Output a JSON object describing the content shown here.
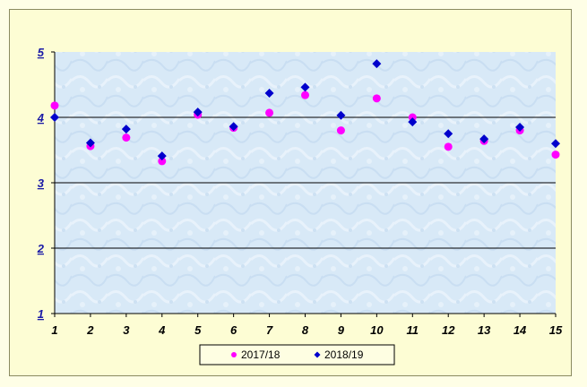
{
  "chart_data": {
    "type": "scatter",
    "title": "",
    "xlabel": "",
    "ylabel": "",
    "x": [
      1,
      2,
      3,
      4,
      5,
      6,
      7,
      8,
      9,
      10,
      11,
      12,
      13,
      14,
      15
    ],
    "xlim": [
      1,
      15
    ],
    "ylim": [
      1,
      5
    ],
    "x_ticks": [
      "1",
      "2",
      "3",
      "4",
      "5",
      "6",
      "7",
      "8",
      "9",
      "10",
      "11",
      "12",
      "13",
      "14",
      "15"
    ],
    "y_ticks": [
      "1",
      "2",
      "3",
      "4",
      "5"
    ],
    "grid": "horizontal",
    "legend_position": "bottom",
    "series": [
      {
        "name": "2017/18",
        "marker": "circle",
        "color": "#ff00ff",
        "values": [
          4.18,
          3.56,
          3.69,
          3.33,
          4.04,
          3.84,
          4.07,
          4.34,
          3.8,
          4.29,
          4.0,
          3.55,
          3.64,
          3.8,
          3.43
        ]
      },
      {
        "name": "2018/19",
        "marker": "diamond",
        "color": "#0000cc",
        "values": [
          4.0,
          3.61,
          3.82,
          3.41,
          4.08,
          3.86,
          4.37,
          4.46,
          4.03,
          4.82,
          3.93,
          3.75,
          3.67,
          3.85,
          3.6
        ]
      }
    ]
  },
  "colors": {
    "tick_label": "#1a1aa6",
    "plot_background": "#d6e8f6",
    "gridline": "#000000"
  }
}
